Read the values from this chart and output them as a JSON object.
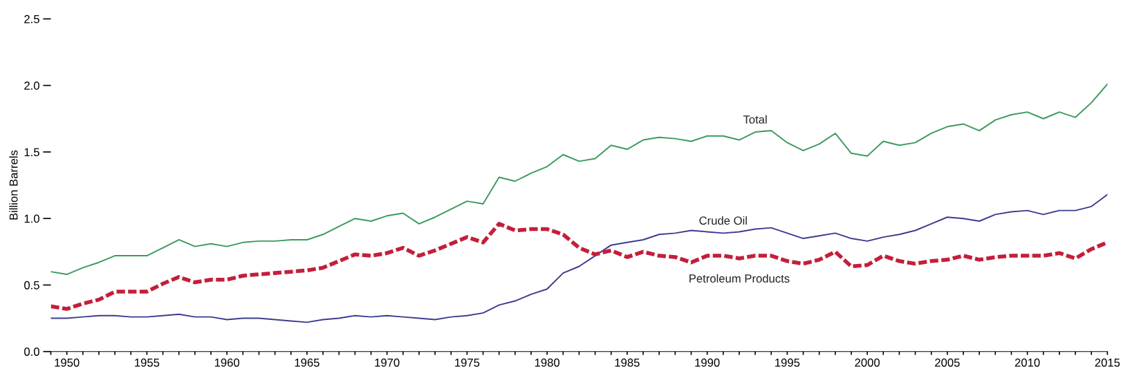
{
  "chart_data": {
    "type": "line",
    "ylabel": "Billion Barrels",
    "x": [
      1949,
      1950,
      1951,
      1952,
      1953,
      1954,
      1955,
      1956,
      1957,
      1958,
      1959,
      1960,
      1961,
      1962,
      1963,
      1964,
      1965,
      1966,
      1967,
      1968,
      1969,
      1970,
      1971,
      1972,
      1973,
      1974,
      1975,
      1976,
      1977,
      1978,
      1979,
      1980,
      1981,
      1982,
      1983,
      1984,
      1985,
      1986,
      1987,
      1988,
      1989,
      1990,
      1991,
      1992,
      1993,
      1994,
      1995,
      1996,
      1997,
      1998,
      1999,
      2000,
      2001,
      2002,
      2003,
      2004,
      2005,
      2006,
      2007,
      2008,
      2009,
      2010,
      2011,
      2012,
      2013,
      2014,
      2015
    ],
    "series": [
      {
        "name": "Total",
        "color": "#3a9a5c",
        "line_style": "solid",
        "values": [
          0.6,
          0.58,
          0.63,
          0.67,
          0.72,
          0.72,
          0.72,
          0.78,
          0.84,
          0.79,
          0.81,
          0.79,
          0.82,
          0.83,
          0.83,
          0.84,
          0.84,
          0.88,
          0.94,
          1.0,
          0.98,
          1.02,
          1.04,
          0.96,
          1.01,
          1.07,
          1.13,
          1.11,
          1.31,
          1.28,
          1.34,
          1.39,
          1.48,
          1.43,
          1.45,
          1.55,
          1.52,
          1.59,
          1.61,
          1.6,
          1.58,
          1.62,
          1.62,
          1.59,
          1.65,
          1.66,
          1.57,
          1.51,
          1.56,
          1.64,
          1.49,
          1.47,
          1.58,
          1.55,
          1.57,
          1.64,
          1.69,
          1.71,
          1.66,
          1.74,
          1.78,
          1.8,
          1.75,
          1.8,
          1.76,
          1.87,
          2.01
        ]
      },
      {
        "name": "Crude Oil",
        "color": "#3b3b8f",
        "line_style": "solid",
        "values": [
          0.25,
          0.25,
          0.26,
          0.27,
          0.27,
          0.26,
          0.26,
          0.27,
          0.28,
          0.26,
          0.26,
          0.24,
          0.25,
          0.25,
          0.24,
          0.23,
          0.22,
          0.24,
          0.25,
          0.27,
          0.26,
          0.27,
          0.26,
          0.25,
          0.24,
          0.26,
          0.27,
          0.29,
          0.35,
          0.38,
          0.43,
          0.47,
          0.59,
          0.64,
          0.72,
          0.8,
          0.82,
          0.84,
          0.88,
          0.89,
          0.91,
          0.9,
          0.89,
          0.9,
          0.92,
          0.93,
          0.89,
          0.85,
          0.87,
          0.89,
          0.85,
          0.83,
          0.86,
          0.88,
          0.91,
          0.96,
          1.01,
          1.0,
          0.98,
          1.03,
          1.05,
          1.06,
          1.03,
          1.06,
          1.06,
          1.09,
          1.18
        ]
      },
      {
        "name": "Petroleum Products",
        "color": "#c41e3a",
        "line_style": "dashed",
        "values": [
          0.34,
          0.32,
          0.36,
          0.39,
          0.45,
          0.45,
          0.45,
          0.51,
          0.56,
          0.52,
          0.54,
          0.54,
          0.57,
          0.58,
          0.59,
          0.6,
          0.61,
          0.63,
          0.68,
          0.73,
          0.72,
          0.74,
          0.78,
          0.72,
          0.76,
          0.81,
          0.86,
          0.82,
          0.96,
          0.91,
          0.92,
          0.92,
          0.88,
          0.78,
          0.73,
          0.76,
          0.71,
          0.75,
          0.72,
          0.71,
          0.67,
          0.72,
          0.72,
          0.7,
          0.72,
          0.72,
          0.68,
          0.66,
          0.69,
          0.75,
          0.64,
          0.65,
          0.72,
          0.68,
          0.66,
          0.68,
          0.69,
          0.72,
          0.69,
          0.71,
          0.72,
          0.72,
          0.72,
          0.74,
          0.7,
          0.77,
          0.82
        ]
      }
    ],
    "xlim": [
      1949,
      2015
    ],
    "ylim": [
      0,
      2.5
    ],
    "xticks": [
      {
        "value": 1949,
        "label": null
      },
      1950,
      {
        "value": 1951,
        "label": null
      },
      {
        "value": 1952,
        "label": null
      },
      {
        "value": 1953,
        "label": null
      },
      {
        "value": 1954,
        "label": null
      },
      1955,
      {
        "value": 1956,
        "label": null
      },
      {
        "value": 1957,
        "label": null
      },
      {
        "value": 1958,
        "label": null
      },
      {
        "value": 1959,
        "label": null
      },
      1960,
      {
        "value": 1961,
        "label": null
      },
      {
        "value": 1962,
        "label": null
      },
      {
        "value": 1963,
        "label": null
      },
      {
        "value": 1964,
        "label": null
      },
      1965,
      {
        "value": 1966,
        "label": null
      },
      {
        "value": 1967,
        "label": null
      },
      {
        "value": 1968,
        "label": null
      },
      {
        "value": 1969,
        "label": null
      },
      1970,
      {
        "value": 1971,
        "label": null
      },
      {
        "value": 1972,
        "label": null
      },
      {
        "value": 1973,
        "label": null
      },
      {
        "value": 1974,
        "label": null
      },
      1975,
      {
        "value": 1976,
        "label": null
      },
      {
        "value": 1977,
        "label": null
      },
      {
        "value": 1978,
        "label": null
      },
      {
        "value": 1979,
        "label": null
      },
      1980,
      {
        "value": 1981,
        "label": null
      },
      {
        "value": 1982,
        "label": null
      },
      {
        "value": 1983,
        "label": null
      },
      {
        "value": 1984,
        "label": null
      },
      1985,
      {
        "value": 1986,
        "label": null
      },
      {
        "value": 1987,
        "label": null
      },
      {
        "value": 1988,
        "label": null
      },
      {
        "value": 1989,
        "label": null
      },
      1990,
      {
        "value": 1991,
        "label": null
      },
      {
        "value": 1992,
        "label": null
      },
      {
        "value": 1993,
        "label": null
      },
      {
        "value": 1994,
        "label": null
      },
      1995,
      {
        "value": 1996,
        "label": null
      },
      {
        "value": 1997,
        "label": null
      },
      {
        "value": 1998,
        "label": null
      },
      {
        "value": 1999,
        "label": null
      },
      2000,
      {
        "value": 2001,
        "label": null
      },
      {
        "value": 2002,
        "label": null
      },
      {
        "value": 2003,
        "label": null
      },
      {
        "value": 2004,
        "label": null
      },
      2005,
      {
        "value": 2006,
        "label": null
      },
      {
        "value": 2007,
        "label": null
      },
      {
        "value": 2008,
        "label": null
      },
      {
        "value": 2009,
        "label": null
      },
      2010,
      {
        "value": 2011,
        "label": null
      },
      {
        "value": 2012,
        "label": null
      },
      {
        "value": 2013,
        "label": null
      },
      {
        "value": 2014,
        "label": null
      },
      2015
    ],
    "yticks": [
      {
        "value": 0,
        "label": "0.0"
      },
      {
        "value": 0.5,
        "label": "0.5"
      },
      {
        "value": 1,
        "label": "1.0"
      },
      {
        "value": 1.5,
        "label": "1.5"
      },
      {
        "value": 2,
        "label": "2.0"
      },
      {
        "value": 2.5,
        "label": "2.5"
      }
    ],
    "grid": false,
    "legend": false
  }
}
